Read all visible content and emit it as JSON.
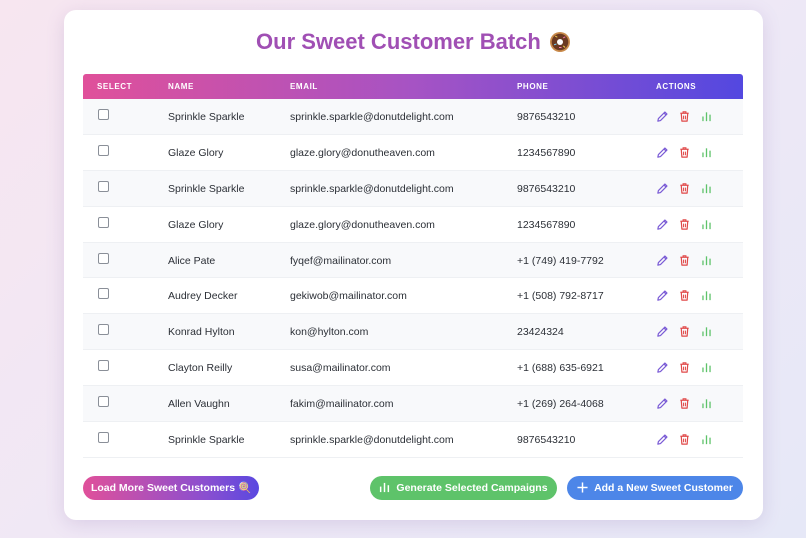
{
  "page": {
    "title": "Our Sweet Customer Batch",
    "title_icon": "donut-icon"
  },
  "table": {
    "headers": {
      "select": "SELECT",
      "name": "NAME",
      "email": "EMAIL",
      "phone": "PHONE",
      "actions": "ACTIONS"
    },
    "rows": [
      {
        "name": "Sprinkle Sparkle",
        "email": "sprinkle.sparkle@donutdelight.com",
        "phone": "9876543210"
      },
      {
        "name": "Glaze Glory",
        "email": "glaze.glory@donutheaven.com",
        "phone": "1234567890"
      },
      {
        "name": "Sprinkle Sparkle",
        "email": "sprinkle.sparkle@donutdelight.com",
        "phone": "9876543210"
      },
      {
        "name": "Glaze Glory",
        "email": "glaze.glory@donutheaven.com",
        "phone": "1234567890"
      },
      {
        "name": "Alice Pate",
        "email": "fyqef@mailinator.com",
        "phone": "+1 (749) 419-7792"
      },
      {
        "name": "Audrey Decker",
        "email": "gekiwob@mailinator.com",
        "phone": "+1 (508) 792-8717"
      },
      {
        "name": "Konrad Hylton",
        "email": "kon@hylton.com",
        "phone": "23424324"
      },
      {
        "name": "Clayton Reilly",
        "email": "susa@mailinator.com",
        "phone": "+1 (688) 635-6921"
      },
      {
        "name": "Allen Vaughn",
        "email": "fakim@mailinator.com",
        "phone": "+1 (269) 264-4068"
      },
      {
        "name": "Sprinkle Sparkle",
        "email": "sprinkle.sparkle@donutdelight.com",
        "phone": "9876543210"
      }
    ],
    "row_actions": [
      "edit-icon",
      "trash-icon",
      "chart-icon"
    ]
  },
  "buttons": {
    "load_more": "Load More Sweet Customers 🍭",
    "generate": "Generate Selected Campaigns",
    "add": "Add a New Sweet Customer"
  },
  "colors": {
    "title": "#a04fb4",
    "header_gradient": [
      "#e0509a",
      "#a653c4",
      "#5348e0"
    ],
    "edit": "#7b5cd6",
    "delete": "#e04848",
    "chart": "#5ec36a",
    "generate_button": "#5ec36a",
    "add_button": "#4d86e8"
  }
}
